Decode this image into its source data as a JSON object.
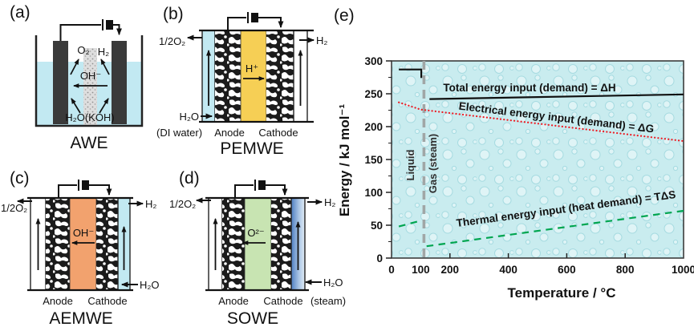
{
  "panels": {
    "a": {
      "label": "(a)",
      "title": "AWE",
      "gas_left": "O₂",
      "gas_right": "H₂",
      "ion": "OH⁻",
      "electrolyte": "H₂O(KOH)"
    },
    "b": {
      "label": "(b)",
      "title": "PEMWE",
      "oxygen_out": "1/2O₂",
      "hydrogen_out": "H₂",
      "ion": "H⁺",
      "water_in": "H₂O",
      "water_note": "(DI water)",
      "anode": "Anode",
      "cathode": "Cathode"
    },
    "c": {
      "label": "(c)",
      "title": "AEMWE",
      "oxygen_out": "1/2O₂",
      "hydrogen_out": "H₂",
      "ion": "OH⁻",
      "water_in": "H₂O",
      "anode": "Anode",
      "cathode": "Cathode"
    },
    "d": {
      "label": "(d)",
      "title": "SOWE",
      "oxygen_out": "1/2O₂",
      "hydrogen_out": "H₂",
      "ion": "O²⁻",
      "water_in": "H₂O",
      "water_note": "(steam)",
      "anode": "Anode",
      "cathode": "Cathode"
    },
    "e": {
      "label": "(e)"
    }
  },
  "colors": {
    "electrolyte_blue": "#c2e9f2",
    "pem_membrane_yellow": "#f6cf55",
    "aem_membrane_orange": "#f2a26e",
    "sowe_membrane_green": "#c8e4b2",
    "electrode_dark": "#3a3a3a",
    "chart_background": "#c9ecef",
    "phase_line_gray": "#a0a6a6"
  },
  "chart_data": {
    "type": "line",
    "title": "",
    "xlabel": "Temperature / °C",
    "ylabel": "Energy / kJ mol⁻¹",
    "xlim": [
      0,
      1000
    ],
    "ylim": [
      0,
      300
    ],
    "x_ticks": [
      0,
      100,
      200,
      400,
      600,
      800,
      1000
    ],
    "y_ticks": [
      0,
      50,
      100,
      150,
      200,
      250,
      300
    ],
    "y_minor_tick_step": 25,
    "grid": false,
    "legend_position": "inline-labels",
    "phase_boundary_c": 100,
    "region_labels": [
      "Liquid",
      "Gas (steam)"
    ],
    "series": [
      {
        "name": "Total energy input (demand) = ΔH",
        "color": "#101010",
        "style": "solid",
        "segments": [
          [
            [
              25,
              287
            ],
            [
              102,
              287
            ],
            [
              102,
              274
            ]
          ],
          [
            [
              130,
              242
            ],
            [
              1000,
              249
            ]
          ]
        ]
      },
      {
        "name": "Electrical energy input (demand) = ΔG",
        "color": "#ed1c24",
        "style": "dotted",
        "segments": [
          [
            [
              25,
              237
            ],
            [
              100,
              226
            ],
            [
              1000,
              178
            ]
          ]
        ]
      },
      {
        "name": "Thermal energy input (heat demand) = TΔS",
        "color": "#00a550",
        "style": "dashed",
        "segments": [
          [
            [
              25,
              48
            ],
            [
              100,
              57
            ]
          ],
          [
            [
              120,
              18
            ],
            [
              1000,
              72
            ]
          ]
        ]
      }
    ]
  }
}
